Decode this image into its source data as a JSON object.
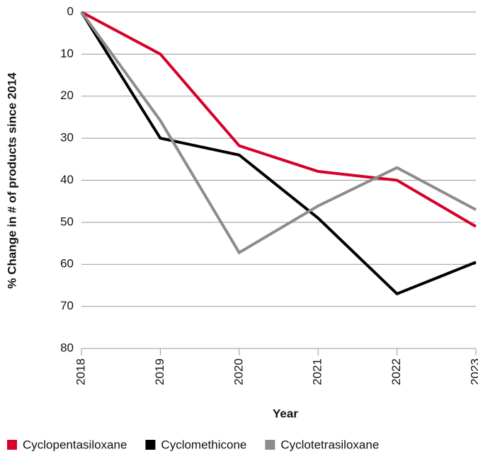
{
  "chart_data": {
    "type": "line",
    "x_label": "Year",
    "y_label": "% Change in # of products since 2014",
    "x": [
      2018,
      2019,
      2020,
      2021,
      2022,
      2023
    ],
    "xlim": [
      2018,
      2023
    ],
    "xticks": [
      2018,
      2019,
      2020,
      2021,
      2022,
      2023
    ],
    "ylim": [
      0,
      80
    ],
    "yticks": [
      0,
      10,
      20,
      30,
      40,
      50,
      60,
      70,
      80
    ],
    "y_inverted": true,
    "grid": true,
    "legend": "bottom",
    "series": [
      {
        "name": "Cyclopentasiloxane",
        "color": "#d6002a",
        "values": [
          0,
          10,
          31.8,
          37.9,
          40,
          51
        ]
      },
      {
        "name": "Cyclomethicone",
        "color": "#000000",
        "values": [
          0,
          30,
          34,
          49,
          67,
          59.5
        ]
      },
      {
        "name": "Cyclotetrasiloxane",
        "color": "#8c8c8c",
        "values": [
          0,
          25.8,
          57.2,
          46.1,
          37,
          47
        ]
      }
    ]
  }
}
